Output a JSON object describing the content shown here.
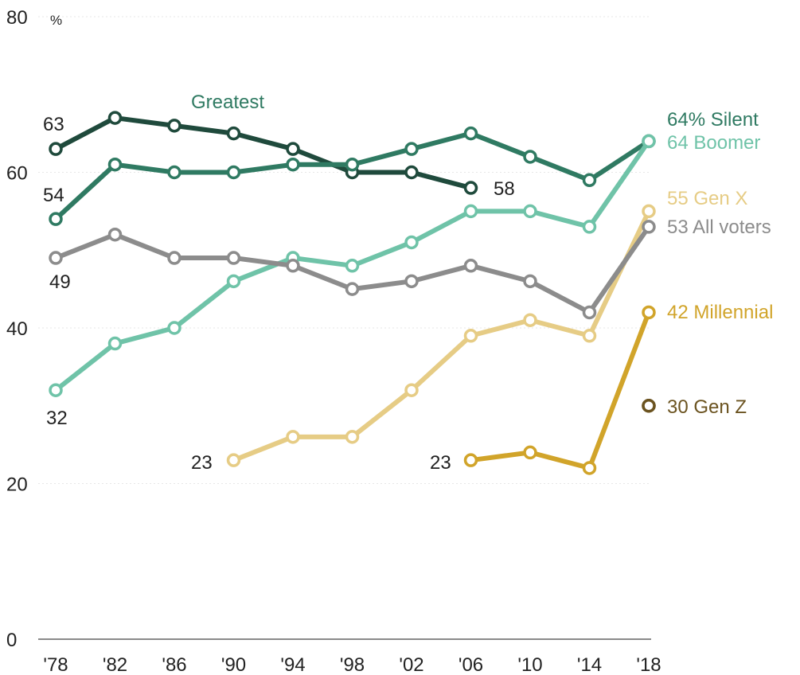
{
  "chart_data": {
    "type": "line",
    "ylim": [
      0,
      80
    ],
    "yticks": [
      0,
      20,
      40,
      60,
      80
    ],
    "y_unit": "%",
    "grid": true,
    "categories": [
      "'78",
      "'82",
      "'86",
      "'90",
      "'94",
      "'98",
      "'02",
      "'06",
      "'10",
      "'14",
      "'18"
    ],
    "series": [
      {
        "name": "Greatest",
        "key": "greatest",
        "color": "#1f4a3c",
        "values": [
          63,
          67,
          66,
          65,
          63,
          60,
          60,
          58,
          null,
          null,
          null
        ]
      },
      {
        "name": "Silent",
        "key": "silent",
        "color": "#2f7a62",
        "values": [
          54,
          61,
          60,
          60,
          61,
          61,
          63,
          65,
          62,
          59,
          64
        ]
      },
      {
        "name": "Boomer",
        "key": "boomer",
        "color": "#6fc3a8",
        "values": [
          32,
          38,
          40,
          46,
          49,
          48,
          51,
          55,
          55,
          53,
          64
        ]
      },
      {
        "name": "Gen X",
        "key": "genx",
        "color": "#e6cc85",
        "values": [
          null,
          null,
          null,
          23,
          26,
          26,
          32,
          39,
          41,
          39,
          55
        ]
      },
      {
        "name": "All voters",
        "key": "all",
        "color": "#8c8c8c",
        "values": [
          49,
          52,
          49,
          49,
          48,
          45,
          46,
          48,
          46,
          42,
          53
        ]
      },
      {
        "name": "Millennial",
        "key": "millennial",
        "color": "#d1a42a",
        "values": [
          null,
          null,
          null,
          null,
          null,
          null,
          null,
          23,
          24,
          22,
          42
        ]
      },
      {
        "name": "Gen Z",
        "key": "genz",
        "color": "#6b5320",
        "values": [
          null,
          null,
          null,
          null,
          null,
          null,
          null,
          null,
          null,
          null,
          30
        ]
      }
    ],
    "annotations": [
      {
        "key": "a_greatest",
        "text": "Greatest",
        "color": "#2f7a62"
      },
      {
        "key": "a_63",
        "text": "63",
        "color": "#222222"
      },
      {
        "key": "a_54",
        "text": "54",
        "color": "#222222"
      },
      {
        "key": "a_49",
        "text": "49",
        "color": "#222222"
      },
      {
        "key": "a_32",
        "text": "32",
        "color": "#222222"
      },
      {
        "key": "a_58",
        "text": "58",
        "color": "#222222"
      },
      {
        "key": "a_23genx",
        "text": "23",
        "color": "#222222"
      },
      {
        "key": "a_23mil",
        "text": "23",
        "color": "#222222"
      },
      {
        "key": "a_silent",
        "text": "64% Silent",
        "color": "#2f7a62"
      },
      {
        "key": "a_boomer",
        "text": "64 Boomer",
        "color": "#6fc3a8"
      },
      {
        "key": "a_genx",
        "text": "55 Gen X",
        "color": "#e6cc85"
      },
      {
        "key": "a_all",
        "text": "53 All voters",
        "color": "#8c8c8c"
      },
      {
        "key": "a_millennial",
        "text": "42 Millennial",
        "color": "#d1a42a"
      },
      {
        "key": "a_genz",
        "text": "30 Gen Z",
        "color": "#6b5320"
      }
    ]
  }
}
